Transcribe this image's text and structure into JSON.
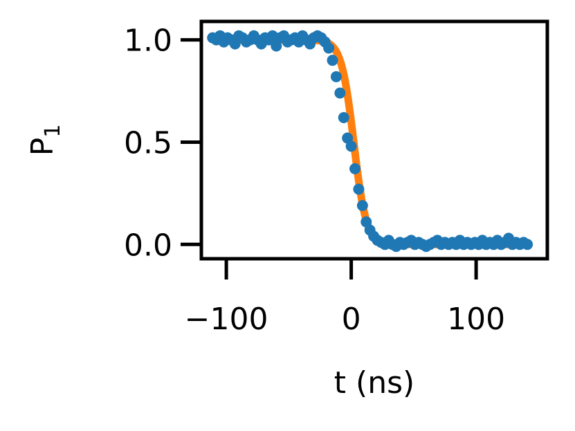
{
  "chart_data": {
    "type": "scatter",
    "title": "",
    "xlabel": "t (ns)",
    "ylabel_main": "P",
    "ylabel_sub": "1",
    "xlim": [
      -120,
      157
    ],
    "ylim": [
      -0.07,
      1.09
    ],
    "xticks": [
      {
        "value": -100,
        "label": "−100"
      },
      {
        "value": 0,
        "label": "0"
      },
      {
        "value": 100,
        "label": "100"
      }
    ],
    "yticks": [
      {
        "value": 0.0,
        "label": "0.0"
      },
      {
        "value": 0.5,
        "label": "0.5"
      },
      {
        "value": 1.0,
        "label": "1.0"
      }
    ],
    "grid": false,
    "legend": false,
    "series": [
      {
        "kind": "scatter",
        "color": "#1f77b4",
        "x": [
          -111,
          -108,
          -105,
          -102,
          -99,
          -96,
          -93,
          -90,
          -87,
          -84,
          -81,
          -78,
          -75,
          -72,
          -69,
          -66,
          -63,
          -60,
          -57,
          -54,
          -51,
          -48,
          -45,
          -42,
          -39,
          -36,
          -33,
          -30,
          -27,
          -24,
          -21,
          -18,
          -15,
          -12,
          -9,
          -6,
          -3,
          0,
          3,
          6,
          9,
          12,
          15,
          18,
          21,
          24,
          27,
          30,
          33,
          36,
          39,
          42,
          45,
          48,
          51,
          54,
          57,
          60,
          63,
          66,
          69,
          72,
          75,
          78,
          81,
          84,
          87,
          90,
          93,
          96,
          99,
          102,
          105,
          108,
          111,
          114,
          117,
          120,
          123,
          126,
          129,
          132,
          135,
          138,
          141
        ],
        "y": [
          1.01,
          1.0,
          1.02,
          0.99,
          1.01,
          1.0,
          0.98,
          1.02,
          1.01,
          0.99,
          1.0,
          1.02,
          1.0,
          0.98,
          1.01,
          1.0,
          1.02,
          0.97,
          1.01,
          1.02,
          0.99,
          1.0,
          1.01,
          0.99,
          1.02,
          1.0,
          0.98,
          1.01,
          1.02,
          1.01,
          0.99,
          0.96,
          0.9,
          0.82,
          0.74,
          0.62,
          0.52,
          0.48,
          0.37,
          0.27,
          0.19,
          0.11,
          0.07,
          0.04,
          0.02,
          0.01,
          0.0,
          0.02,
          0.0,
          -0.01,
          0.01,
          0.0,
          0.01,
          0.02,
          0.0,
          0.01,
          0.0,
          -0.01,
          0.0,
          0.01,
          0.02,
          0.0,
          0.01,
          0.0,
          0.01,
          0.0,
          0.02,
          0.0,
          0.01,
          0.0,
          0.01,
          0.0,
          0.02,
          0.0,
          0.01,
          0.0,
          0.02,
          0.0,
          0.01,
          0.03,
          0.0,
          0.01,
          0.0,
          0.01,
          0.0
        ]
      },
      {
        "kind": "fit-line",
        "color": "#ff7f0e",
        "model": "logistic",
        "amplitude": 1.0,
        "offset": 0.0,
        "center": 2,
        "width": 5,
        "x_range": [
          -111,
          142
        ]
      }
    ]
  }
}
